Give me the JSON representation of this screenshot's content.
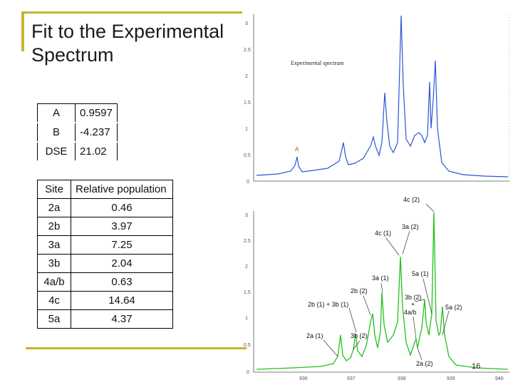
{
  "title": {
    "line1": "Fit to the Experimental",
    "line2": "Spectrum"
  },
  "params": [
    {
      "key": "A",
      "value": "0.9597"
    },
    {
      "key": "B",
      "value": "-4.237"
    },
    {
      "key": "DSE",
      "value": "21.02"
    }
  ],
  "population": {
    "header": {
      "site": "Site",
      "rel": "Relative population"
    },
    "rows": [
      {
        "site": "2a",
        "rel": "0.46"
      },
      {
        "site": "2b",
        "rel": "3.97"
      },
      {
        "site": "3a",
        "rel": "7.25"
      },
      {
        "site": "3b",
        "rel": "2.04"
      },
      {
        "site": "4a/b",
        "rel": "0.63"
      },
      {
        "site": "4c",
        "rel": "14.64"
      },
      {
        "site": "5a",
        "rel": "4.37"
      }
    ]
  },
  "top_plot": {
    "label": "Experimental spectrum",
    "marker": "A",
    "yticks": [
      "3",
      "2.5",
      "2",
      "1.5",
      "1",
      "0.5",
      "0"
    ],
    "color": "#2c54d6"
  },
  "bottom_plot": {
    "yticks": [
      "3",
      "2.5",
      "2",
      "1.5",
      "1",
      "0.5",
      "0"
    ],
    "xticks": [
      "936",
      "937",
      "938",
      "939",
      "940"
    ],
    "color": "#21c21b",
    "annotations": [
      "4c (2)",
      "3a (2)",
      "4c (1)",
      "5a (1)",
      "3a (1)",
      "2b (2)",
      "3b (2)",
      "2b (1) + 3b (1)",
      "+",
      "4a/b",
      "5a (2)",
      "2a (1)",
      "3b (2)",
      "2a (2)"
    ]
  },
  "page_number": "16"
}
